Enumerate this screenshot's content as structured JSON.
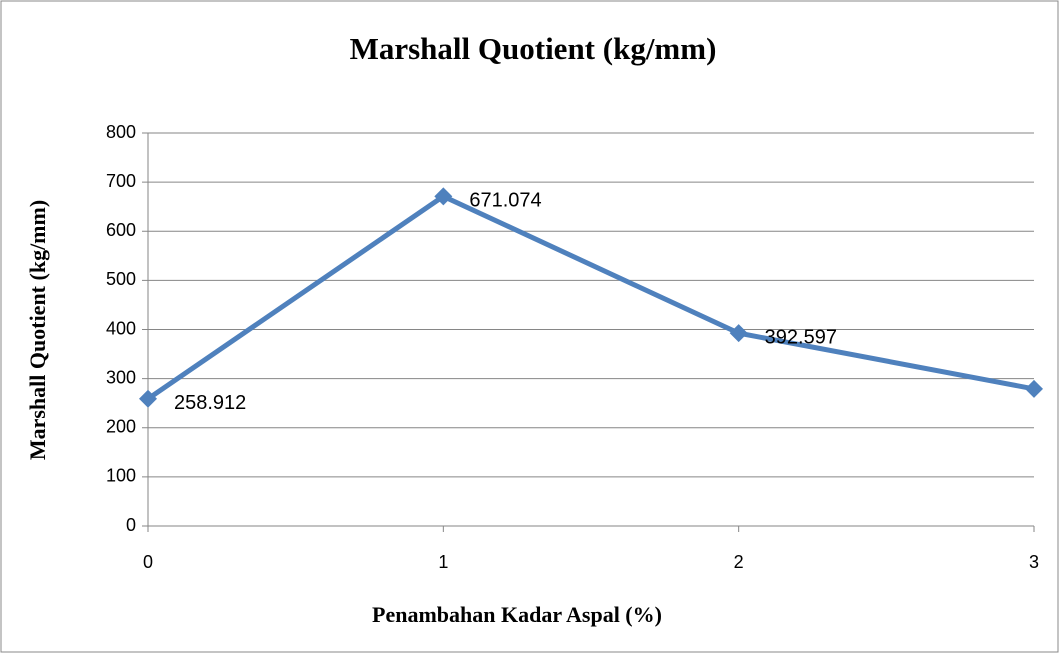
{
  "chart_data": {
    "type": "line",
    "title": "Marshall Quotient (kg/mm)",
    "x_label": "Penambahan Kadar Aspal (%)",
    "y_label": "Marshall Quotient (kg/mm)",
    "x": [
      0,
      1,
      2,
      3
    ],
    "series": [
      {
        "name": "Marshall Quotient (kg/mm)",
        "color": "#4f81bd",
        "values": [
          258.912,
          671.074,
          392.597,
          279.061
        ]
      }
    ],
    "xlim": [
      0,
      3
    ],
    "xticks": [
      0,
      1,
      2,
      3
    ],
    "ylim": [
      0,
      800
    ],
    "yticks": [
      0,
      100,
      200,
      300,
      400,
      500,
      600,
      700,
      800
    ],
    "grid": true
  }
}
